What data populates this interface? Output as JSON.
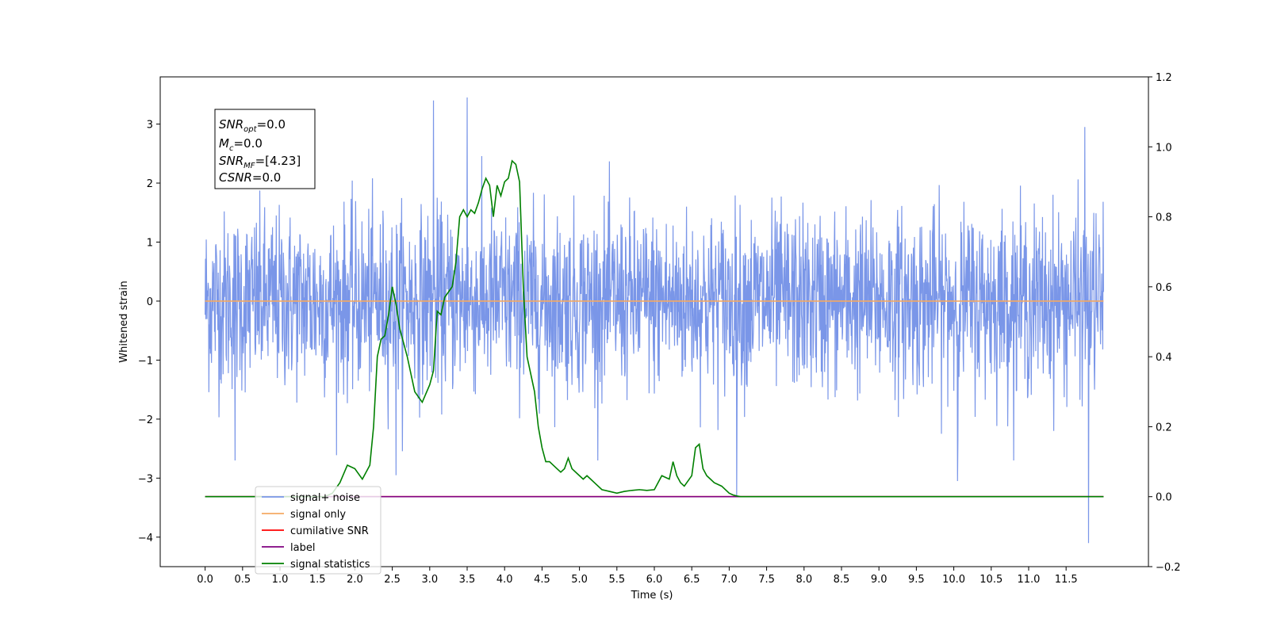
{
  "chart_data": {
    "type": "line",
    "xlabel": "Time (s)",
    "ylabel": "Whitened strain",
    "xlim": [
      -0.6,
      12.6
    ],
    "ylim": [
      -4.5,
      3.8
    ],
    "y2lim": [
      -0.2,
      1.2
    ],
    "x_ticks": [
      "0.0",
      "0.5",
      "1.0",
      "1.5",
      "2.0",
      "2.5",
      "3.0",
      "3.5",
      "4.0",
      "4.5",
      "5.0",
      "5.5",
      "6.0",
      "6.5",
      "7.0",
      "7.5",
      "8.0",
      "8.5",
      "9.0",
      "9.5",
      "10.0",
      "10.5",
      "11.0",
      "11.5"
    ],
    "y_ticks": [
      "3",
      "2",
      "1",
      "0",
      "−1",
      "−2",
      "−3",
      "−4"
    ],
    "y2_ticks": [
      "1.2",
      "1.0",
      "0.8",
      "0.6",
      "0.4",
      "0.2",
      "0.0",
      "−0.2"
    ],
    "grid": false,
    "legend_position": "lower-left",
    "info_box": [
      {
        "name": "SNR",
        "sub": "opt",
        "value": "=0.0"
      },
      {
        "name": "M",
        "sub": "c",
        "value": "=0.0"
      },
      {
        "name": "SNR",
        "sub": "MF",
        "value": "=[4.23]"
      },
      {
        "name": "CSNR",
        "sub": "",
        "value": "=0.0"
      }
    ],
    "series": [
      {
        "name": "signal+ noise",
        "color": "#7a96e8",
        "axis": "left",
        "kind": "noise",
        "x_range": [
          0.0,
          12.0
        ],
        "approx_std": 0.75,
        "spikes": [
          {
            "x": 3.05,
            "y": 3.4
          },
          {
            "x": 3.5,
            "y": 3.45
          },
          {
            "x": 11.75,
            "y": 2.95
          },
          {
            "x": 11.8,
            "y": -4.1
          },
          {
            "x": 7.1,
            "y": -3.3
          },
          {
            "x": 10.05,
            "y": -3.05
          },
          {
            "x": 2.55,
            "y": -2.95
          },
          {
            "x": 0.4,
            "y": -2.7
          }
        ]
      },
      {
        "name": "signal only",
        "color": "#f5a962",
        "axis": "left",
        "x": [
          0.0,
          12.0
        ],
        "values": [
          0.0,
          0.0
        ]
      },
      {
        "name": "cumilative SNR",
        "color": "#ff0000",
        "axis": "right",
        "x": [
          0.0,
          12.0
        ],
        "values": [
          0.0,
          0.0
        ]
      },
      {
        "name": "label",
        "color": "#800080",
        "axis": "right",
        "x": [
          0.0,
          12.0
        ],
        "values": [
          0.0,
          0.0
        ]
      },
      {
        "name": "signal statistics",
        "color": "#008000",
        "axis": "right",
        "x": [
          0.0,
          1.6,
          1.7,
          1.8,
          1.9,
          2.0,
          2.1,
          2.2,
          2.25,
          2.3,
          2.35,
          2.4,
          2.45,
          2.5,
          2.55,
          2.6,
          2.7,
          2.8,
          2.9,
          3.0,
          3.05,
          3.1,
          3.15,
          3.2,
          3.3,
          3.35,
          3.4,
          3.45,
          3.5,
          3.55,
          3.6,
          3.65,
          3.7,
          3.75,
          3.8,
          3.85,
          3.9,
          3.95,
          4.0,
          4.05,
          4.1,
          4.15,
          4.2,
          4.25,
          4.3,
          4.35,
          4.4,
          4.45,
          4.5,
          4.55,
          4.6,
          4.7,
          4.75,
          4.8,
          4.85,
          4.9,
          5.0,
          5.05,
          5.1,
          5.15,
          5.2,
          5.3,
          5.4,
          5.5,
          5.6,
          5.7,
          5.8,
          5.9,
          6.0,
          6.1,
          6.2,
          6.25,
          6.3,
          6.35,
          6.4,
          6.5,
          6.55,
          6.6,
          6.65,
          6.7,
          6.75,
          6.8,
          6.9,
          7.0,
          7.05,
          7.1,
          7.15,
          7.2,
          7.3,
          7.5,
          8.0,
          9.0,
          10.0,
          11.0,
          12.0
        ],
        "values": [
          0.0,
          0.0,
          0.01,
          0.04,
          0.09,
          0.08,
          0.05,
          0.09,
          0.2,
          0.4,
          0.45,
          0.46,
          0.52,
          0.6,
          0.55,
          0.48,
          0.4,
          0.3,
          0.27,
          0.32,
          0.36,
          0.53,
          0.52,
          0.57,
          0.6,
          0.67,
          0.8,
          0.82,
          0.8,
          0.82,
          0.81,
          0.84,
          0.88,
          0.91,
          0.89,
          0.8,
          0.89,
          0.86,
          0.9,
          0.91,
          0.96,
          0.95,
          0.9,
          0.6,
          0.4,
          0.35,
          0.3,
          0.2,
          0.14,
          0.1,
          0.1,
          0.08,
          0.07,
          0.08,
          0.11,
          0.08,
          0.06,
          0.05,
          0.06,
          0.05,
          0.04,
          0.02,
          0.015,
          0.01,
          0.015,
          0.018,
          0.02,
          0.018,
          0.02,
          0.06,
          0.05,
          0.1,
          0.06,
          0.04,
          0.03,
          0.06,
          0.14,
          0.15,
          0.08,
          0.06,
          0.05,
          0.04,
          0.03,
          0.01,
          0.005,
          0.002,
          0.0,
          0.0,
          0.0,
          0.0,
          0.0,
          0.0,
          0.0,
          0.0,
          0.0
        ]
      }
    ]
  }
}
